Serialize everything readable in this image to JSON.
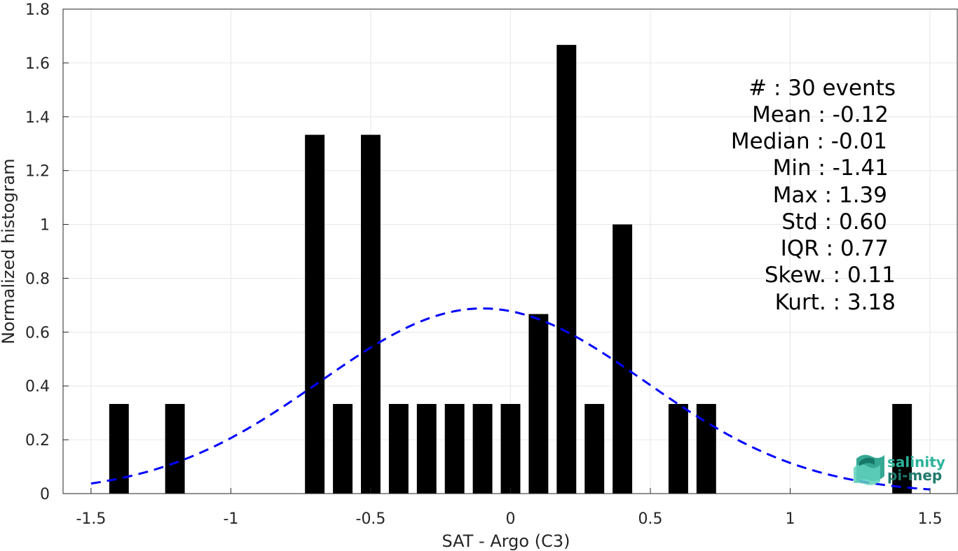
{
  "chart_data": {
    "type": "bar",
    "xlabel": "SAT - Argo (C3)",
    "ylabel": "Normalized histogram",
    "xlim": [
      -1.6,
      1.6
    ],
    "ylim": [
      0,
      1.8
    ],
    "grid": true,
    "x_ticks": [
      "-1.5",
      "-1",
      "-0.5",
      "0",
      "0.5",
      "1",
      "1.5"
    ],
    "y_ticks": [
      "0",
      "0.2",
      "0.4",
      "0.6",
      "0.8",
      "1",
      "1.2",
      "1.4",
      "1.6",
      "1.8"
    ],
    "bar_width": 0.07,
    "bars": [
      {
        "x": -1.4,
        "y": 0.333
      },
      {
        "x": -1.2,
        "y": 0.333
      },
      {
        "x": -0.7,
        "y": 1.333
      },
      {
        "x": -0.6,
        "y": 0.333
      },
      {
        "x": -0.5,
        "y": 1.333
      },
      {
        "x": -0.4,
        "y": 0.333
      },
      {
        "x": -0.3,
        "y": 0.333
      },
      {
        "x": -0.2,
        "y": 0.333
      },
      {
        "x": -0.1,
        "y": 0.333
      },
      {
        "x": 0.0,
        "y": 0.333
      },
      {
        "x": 0.1,
        "y": 0.667
      },
      {
        "x": 0.2,
        "y": 1.667
      },
      {
        "x": 0.3,
        "y": 0.333
      },
      {
        "x": 0.4,
        "y": 1.0
      },
      {
        "x": 0.6,
        "y": 0.333
      },
      {
        "x": 0.7,
        "y": 0.333
      },
      {
        "x": 1.4,
        "y": 0.333
      }
    ],
    "fit_curve": {
      "type": "normal",
      "mean": -0.1,
      "std": 0.58,
      "x_range": [
        -1.5,
        1.5
      ],
      "color": "#0000ff",
      "style": "dashed"
    },
    "bar_color": "#000000",
    "stats": {
      "count": "#  : 30 events",
      "mean": "Mean : -0.12",
      "median": "Median : -0.01",
      "min": "Min : -1.41",
      "max": "Max : 1.39",
      "std": "Std : 0.60",
      "iqr": "IQR : 0.77",
      "skew": "Skew. : 0.11",
      "kurt": "Kurt. : 3.18"
    }
  },
  "logo": {
    "line1": "salinity",
    "line2": "pi-mep",
    "color1": "#2bb39a",
    "color2": "#1f7a6c"
  }
}
